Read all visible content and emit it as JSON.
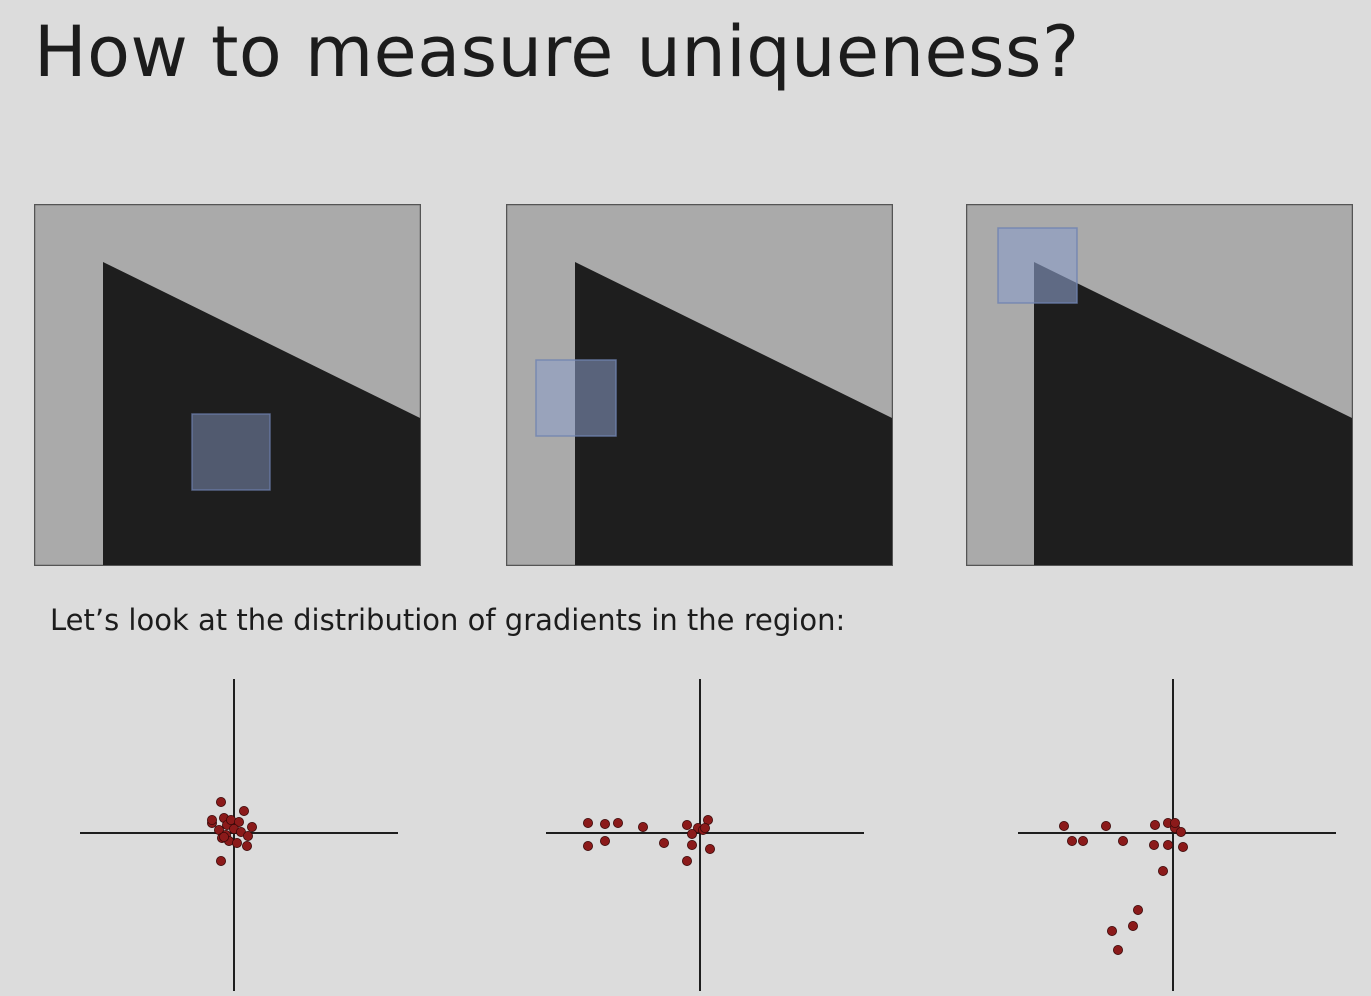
{
  "slide": {
    "title": "How to measure uniqueness?",
    "caption": "Let’s look at the distribution of gradients in the region:"
  },
  "colors": {
    "background": "#dcdcdc",
    "image_light": "#aaaaaa",
    "image_dark": "#1e1e1e",
    "window": "#8a9cc8",
    "point": "#8b1a1a",
    "axis": "#1e1e1e"
  },
  "panels": [
    {
      "name": "flat-region",
      "window_position": "inside-dark-region"
    },
    {
      "name": "edge-region",
      "window_position": "on-vertical-edge"
    },
    {
      "name": "corner-region",
      "window_position": "on-corner"
    }
  ],
  "scatter_plots": [
    {
      "name": "flat",
      "points": [
        [
          -13,
          31
        ],
        [
          10,
          22
        ],
        [
          -10,
          15
        ],
        [
          -7,
          8
        ],
        [
          -3,
          13
        ],
        [
          5,
          11
        ],
        [
          18,
          6
        ],
        [
          -22,
          10
        ],
        [
          -15,
          3
        ],
        [
          -8,
          -2
        ],
        [
          0,
          4
        ],
        [
          7,
          1
        ],
        [
          14,
          -3
        ],
        [
          -12,
          -5
        ],
        [
          -5,
          -8
        ],
        [
          3,
          -10
        ],
        [
          13,
          -13
        ],
        [
          -13,
          -28
        ],
        [
          -22,
          13
        ],
        [
          -10,
          -4
        ]
      ]
    },
    {
      "name": "edge",
      "points": [
        [
          -112,
          10
        ],
        [
          -95,
          9
        ],
        [
          -82,
          10
        ],
        [
          -57,
          6
        ],
        [
          -13,
          8
        ],
        [
          -2,
          5
        ],
        [
          8,
          13
        ],
        [
          3,
          3
        ],
        [
          -8,
          -1
        ],
        [
          -112,
          -13
        ],
        [
          -95,
          -8
        ],
        [
          -36,
          -10
        ],
        [
          -8,
          -12
        ],
        [
          10,
          -16
        ],
        [
          -13,
          -28
        ],
        [
          5,
          5
        ]
      ]
    },
    {
      "name": "corner",
      "points": [
        [
          -109,
          7
        ],
        [
          -67,
          7
        ],
        [
          -18,
          8
        ],
        [
          -5,
          10
        ],
        [
          2,
          5
        ],
        [
          8,
          1
        ],
        [
          -101,
          -8
        ],
        [
          -90,
          -8
        ],
        [
          -50,
          -8
        ],
        [
          -19,
          -12
        ],
        [
          -5,
          -12
        ],
        [
          10,
          -14
        ],
        [
          -10,
          -38
        ],
        [
          -35,
          -77
        ],
        [
          -40,
          -93
        ],
        [
          -61,
          -98
        ],
        [
          -55,
          -117
        ],
        [
          2,
          10
        ]
      ]
    }
  ]
}
